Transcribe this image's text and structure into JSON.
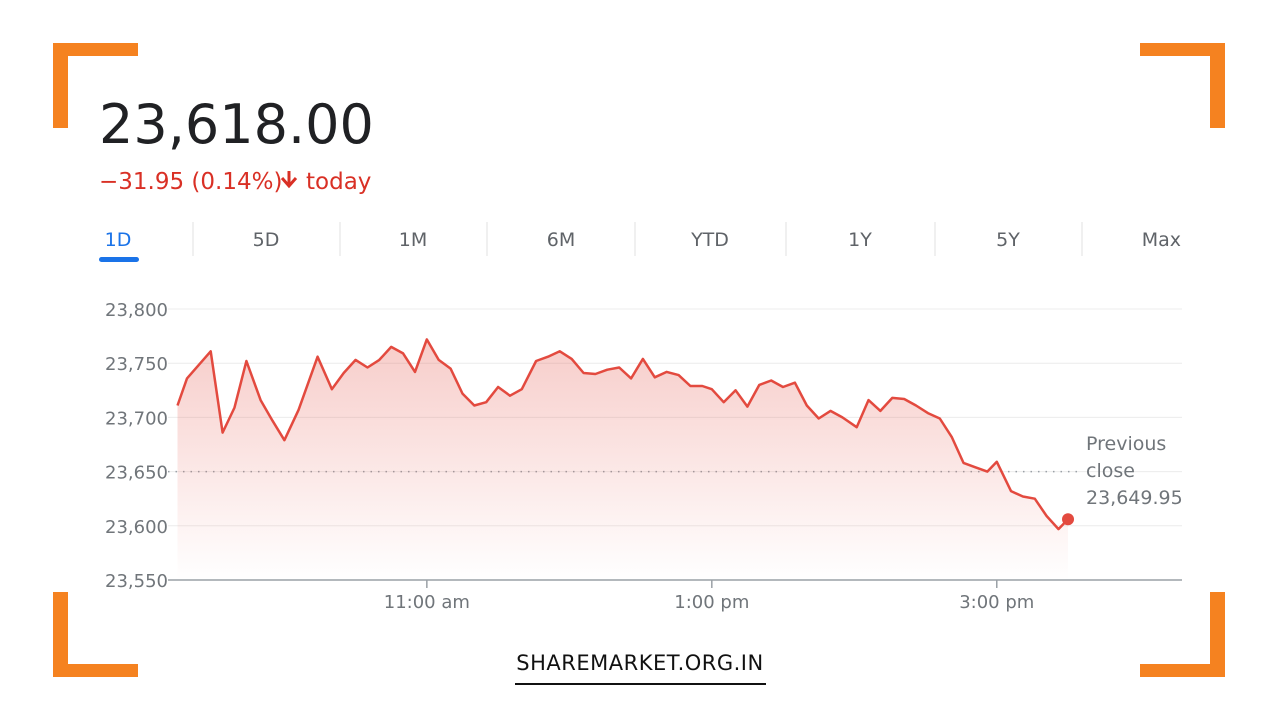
{
  "price": "23,618.00",
  "change": {
    "text": "−31.95 (0.14%)",
    "period": "today"
  },
  "tabs": [
    "1D",
    "5D",
    "1M",
    "6M",
    "YTD",
    "1Y",
    "5Y",
    "Max"
  ],
  "footer": "SHAREMARKET.ORG.IN",
  "chart_data": {
    "type": "line",
    "color": "#e34a3f",
    "x": [
      555,
      559,
      569,
      574,
      579,
      584,
      590,
      595,
      600,
      606,
      614,
      620,
      625,
      630,
      635,
      640,
      645,
      650,
      655,
      660,
      665,
      670,
      675,
      680,
      685,
      690,
      695,
      700,
      706,
      711,
      716,
      721,
      726,
      731,
      736,
      741,
      746,
      751,
      756,
      761,
      766,
      771,
      776,
      780,
      785,
      790,
      795,
      800,
      805,
      810,
      815,
      820,
      825,
      830,
      835,
      841,
      846,
      851,
      856,
      861,
      866,
      871,
      876,
      881,
      886,
      891,
      896,
      900,
      906,
      911,
      916,
      921,
      926,
      930
    ],
    "values": [
      23711,
      23736,
      23761,
      23686,
      23709,
      23752,
      23716,
      23697,
      23679,
      23707,
      23756,
      23726,
      23741,
      23753,
      23746,
      23753,
      23765,
      23759,
      23742,
      23772,
      23753,
      23745,
      23722,
      23711,
      23714,
      23728,
      23720,
      23726,
      23752,
      23756,
      23761,
      23754,
      23741,
      23740,
      23744,
      23746,
      23736,
      23754,
      23737,
      23742,
      23739,
      23729,
      23729,
      23726,
      23714,
      23725,
      23710,
      23730,
      23734,
      23728,
      23732,
      23711,
      23699,
      23706,
      23700,
      23691,
      23716,
      23706,
      23718,
      23717,
      23711,
      23704,
      23699,
      23682,
      23658,
      23654,
      23650,
      23659,
      23632,
      23627,
      23625,
      23609,
      23597,
      23606
    ],
    "xlim": [
      551,
      978
    ],
    "ylim": [
      23550,
      23800
    ],
    "xticks": [
      {
        "value": 660,
        "label": "11:00 am"
      },
      {
        "value": 780,
        "label": "1:00 pm"
      },
      {
        "value": 900,
        "label": "3:00 pm"
      }
    ],
    "yticks": [
      {
        "value": 23550,
        "label": "23,550"
      },
      {
        "value": 23600,
        "label": "23,600"
      },
      {
        "value": 23650,
        "label": "23,650"
      },
      {
        "value": 23700,
        "label": "23,700"
      },
      {
        "value": 23750,
        "label": "23,750"
      },
      {
        "value": 23800,
        "label": "23,800"
      }
    ],
    "grid": true,
    "previous_close": {
      "label": "Previous close",
      "value": 23649.95,
      "value_label": "23,649.95"
    }
  }
}
